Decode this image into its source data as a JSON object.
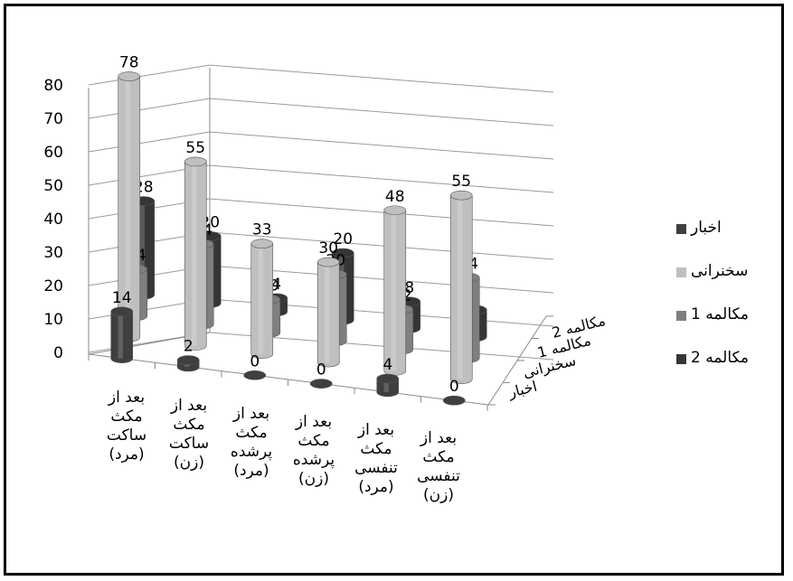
{
  "chart_data": {
    "type": "bar3d",
    "categories": [
      "بعد از مکث ساکت (مرد)",
      "بعد از مکث ساکت (زن)",
      "بعد از مکث پرشده (مرد)",
      "بعد از مکث پرشده (زن)",
      "بعد از مکث تنفسی (مرد)",
      "بعد از مکث تنفسی (زن)"
    ],
    "category_lines": [
      [
        "بعد از",
        "مکث",
        "ساکت",
        "(مرد)"
      ],
      [
        "بعد از",
        "مکث",
        "ساکت",
        "(زن)"
      ],
      [
        "بعد از",
        "مکث",
        "پرشده",
        "(مرد)"
      ],
      [
        "بعد از",
        "مکث",
        "پرشده",
        "(زن)"
      ],
      [
        "بعد از",
        "مکث",
        "تنفسی",
        "(مرد)"
      ],
      [
        "بعد از",
        "مکث",
        "تنفسی",
        "(زن)"
      ]
    ],
    "series": [
      {
        "name": "اخبار",
        "values": [
          14,
          2,
          0,
          0,
          4,
          0
        ]
      },
      {
        "name": "سخنرانی",
        "values": [
          78,
          55,
          33,
          30,
          48,
          55
        ]
      },
      {
        "name": "مکالمه 1",
        "values": [
          14,
          24,
          10,
          20,
          12,
          24
        ]
      },
      {
        "name": "مکالمه 2",
        "values": [
          28,
          20,
          4,
          20,
          8,
          8
        ]
      }
    ],
    "depth_labels": [
      "اخبار",
      "سخنرانی",
      "مکالمه 1",
      "مکالمه 2"
    ],
    "y_ticks": [
      "0",
      "10",
      "20",
      "30",
      "40",
      "50",
      "60",
      "70",
      "80"
    ],
    "ylim": [
      0,
      80
    ],
    "colors": [
      "#3f3f3f",
      "#bfbfbf",
      "#7f7f7f",
      "#353535"
    ],
    "legend_position": "right",
    "grid": true
  }
}
